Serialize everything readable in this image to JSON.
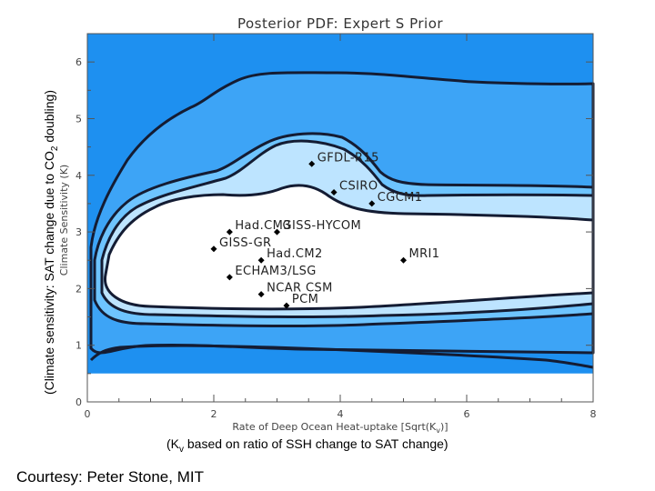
{
  "chart_data": {
    "type": "contour",
    "title": "Posterior PDF: Expert S Prior",
    "xlabel": "Rate of Deep Ocean Heat-uptake [Sqrt(K",
    "xlabel_sub": "v",
    "xlabel_end": ")]",
    "ylabel": "Climate Sensitivity (K)",
    "xlim": [
      0,
      8
    ],
    "ylim": [
      0,
      6.5
    ],
    "x_ticks": [
      0,
      2,
      4,
      6,
      8
    ],
    "y_ticks": [
      0,
      1,
      2,
      3,
      4,
      5,
      6
    ],
    "colors": {
      "outer": "#1e90f0",
      "band2": "#3da4f6",
      "band3": "#6ec4ff",
      "band4": "#bde4ff",
      "core": "#ffffff",
      "contour": "#141c33"
    },
    "models": [
      {
        "name": "GFDL-R15",
        "x": 3.55,
        "y": 4.2
      },
      {
        "name": "CSIRO",
        "x": 3.9,
        "y": 3.7
      },
      {
        "name": "CGCM1",
        "x": 4.5,
        "y": 3.5
      },
      {
        "name": "Had.CM3",
        "x": 2.25,
        "y": 3.0
      },
      {
        "name": "GISS-HYCOM",
        "x": 3.0,
        "y": 3.0
      },
      {
        "name": "GISS-GR",
        "x": 2.0,
        "y": 2.7
      },
      {
        "name": "Had.CM2",
        "x": 2.75,
        "y": 2.5
      },
      {
        "name": "MRI1",
        "x": 5.0,
        "y": 2.5
      },
      {
        "name": "ECHAM3/LSG",
        "x": 2.25,
        "y": 2.2
      },
      {
        "name": "NCAR CSM",
        "x": 2.75,
        "y": 1.9
      },
      {
        "name": "PCM",
        "x": 3.15,
        "y": 1.7
      }
    ]
  },
  "captions": {
    "side_pre": "(Climate sensitivity: SAT change due to CO",
    "side_sub": "2",
    "side_post": " doubling)",
    "bottom_pre": "(K",
    "bottom_sub": "v",
    "bottom_post": " based on ratio of SSH change to SAT change)",
    "courtesy": "Courtesy: Peter Stone, MIT"
  }
}
